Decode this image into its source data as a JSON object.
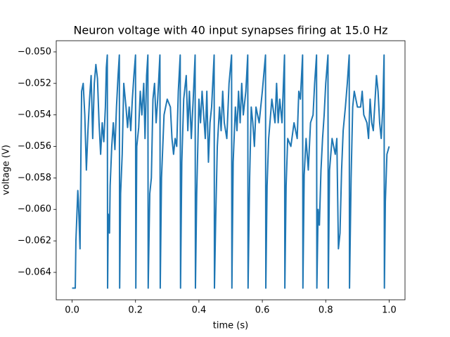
{
  "chart_data": {
    "type": "line",
    "title": "Neuron voltage with 40 input synapses firing at 15.0 Hz",
    "x_label": "time (s)",
    "y_label": "voltage (V)",
    "color": "#1f77b4",
    "xlim": [
      -0.05,
      1.05
    ],
    "xticks": [
      {
        "value": 0,
        "label": "0.0"
      },
      0.2,
      0.4,
      0.6,
      0.8,
      {
        "value": 1,
        "label": "1.0"
      }
    ],
    "ylim": [
      -0.06574,
      -0.04929
    ],
    "yticks": [
      {
        "value": -0.064,
        "label": "−0.064"
      },
      {
        "value": -0.062,
        "label": "−0.062"
      },
      {
        "value": -0.06,
        "label": "−0.060"
      },
      {
        "value": -0.058,
        "label": "−0.058"
      },
      {
        "value": -0.056,
        "label": "−0.056"
      },
      {
        "value": -0.054,
        "label": "−0.054"
      },
      {
        "value": -0.052,
        "label": "−0.052"
      },
      {
        "value": -0.05,
        "label": "−0.050"
      }
    ],
    "x": [
      0,
      0.01,
      0.012,
      0.018,
      0.02,
      0.025,
      0.028,
      0.03,
      0.035,
      0.04,
      0.045,
      0.05,
      0.055,
      0.06,
      0.065,
      0.07,
      0.075,
      0.08,
      0.085,
      0.09,
      0.095,
      0.1,
      0.105,
      0.108,
      0.111,
      0.112,
      0.114,
      0.118,
      0.12,
      0.125,
      0.13,
      0.135,
      0.14,
      0.145,
      0.149,
      0.15,
      0.153,
      0.158,
      0.163,
      0.17,
      0.175,
      0.18,
      0.185,
      0.19,
      0.195,
      0.2,
      0.201,
      0.204,
      0.21,
      0.215,
      0.22,
      0.226,
      0.23,
      0.235,
      0.239,
      0.24,
      0.245,
      0.25,
      0.255,
      0.26,
      0.265,
      0.27,
      0.277,
      0.278,
      0.282,
      0.29,
      0.3,
      0.31,
      0.315,
      0.32,
      0.325,
      0.33,
      0.335,
      0.341,
      0.342,
      0.346,
      0.352,
      0.36,
      0.365,
      0.37,
      0.376,
      0.382,
      0.388,
      0.389,
      0.393,
      0.4,
      0.405,
      0.41,
      0.415,
      0.42,
      0.425,
      0.43,
      0.435,
      0.44,
      0.448,
      0.449,
      0.453,
      0.458,
      0.465,
      0.47,
      0.475,
      0.48,
      0.488,
      0.495,
      0.503,
      0.504,
      0.508,
      0.515,
      0.52,
      0.525,
      0.53,
      0.535,
      0.54,
      0.548,
      0.554,
      0.555,
      0.56,
      0.565,
      0.57,
      0.575,
      0.58,
      0.59,
      0.6,
      0.61,
      0.611,
      0.615,
      0.62,
      0.63,
      0.64,
      0.645,
      0.65,
      0.655,
      0.662,
      0.67,
      0.671,
      0.675,
      0.68,
      0.69,
      0.7,
      0.71,
      0.715,
      0.72,
      0.727,
      0.728,
      0.732,
      0.738,
      0.745,
      0.752,
      0.76,
      0.765,
      0.771,
      0.772,
      0.776,
      0.78,
      0.785,
      0.79,
      0.795,
      0.8,
      0.807,
      0.808,
      0.812,
      0.82,
      0.83,
      0.835,
      0.84,
      0.845,
      0.85,
      0.855,
      0.862,
      0.868,
      0.874,
      0.875,
      0.88,
      0.885,
      0.89,
      0.9,
      0.91,
      0.915,
      0.92,
      0.93,
      0.935,
      0.94,
      0.945,
      0.95,
      0.96,
      0.965,
      0.97,
      0.975,
      0.98,
      0.984,
      0.985,
      0.988,
      0.993,
      1
    ],
    "values": [
      -0.065,
      -0.065,
      -0.062,
      -0.0588,
      -0.0595,
      -0.0625,
      -0.056,
      -0.0525,
      -0.052,
      -0.054,
      -0.0575,
      -0.055,
      -0.053,
      -0.0515,
      -0.0555,
      -0.052,
      -0.0508,
      -0.0517,
      -0.0545,
      -0.0565,
      -0.0545,
      -0.0557,
      -0.0535,
      -0.051,
      -0.0502,
      -0.065,
      -0.0603,
      -0.0615,
      -0.0585,
      -0.056,
      -0.0545,
      -0.0562,
      -0.0535,
      -0.0515,
      -0.0502,
      -0.065,
      -0.059,
      -0.0565,
      -0.052,
      -0.0535,
      -0.0548,
      -0.0535,
      -0.055,
      -0.053,
      -0.0515,
      -0.0502,
      -0.065,
      -0.056,
      -0.0548,
      -0.0525,
      -0.054,
      -0.052,
      -0.0555,
      -0.0515,
      -0.0502,
      -0.065,
      -0.059,
      -0.058,
      -0.053,
      -0.052,
      -0.0545,
      -0.053,
      -0.0502,
      -0.065,
      -0.058,
      -0.054,
      -0.053,
      -0.0535,
      -0.0555,
      -0.0565,
      -0.0555,
      -0.056,
      -0.0525,
      -0.0502,
      -0.065,
      -0.057,
      -0.053,
      -0.0515,
      -0.055,
      -0.0525,
      -0.0555,
      -0.053,
      -0.0502,
      -0.065,
      -0.059,
      -0.053,
      -0.0545,
      -0.0525,
      -0.054,
      -0.0555,
      -0.0525,
      -0.057,
      -0.0545,
      -0.0535,
      -0.0502,
      -0.065,
      -0.0605,
      -0.056,
      -0.0535,
      -0.055,
      -0.0525,
      -0.0545,
      -0.0555,
      -0.052,
      -0.0502,
      -0.065,
      -0.057,
      -0.0535,
      -0.055,
      -0.0525,
      -0.0545,
      -0.052,
      -0.054,
      -0.0525,
      -0.0502,
      -0.065,
      -0.058,
      -0.0535,
      -0.0545,
      -0.056,
      -0.0535,
      -0.0545,
      -0.0525,
      -0.0502,
      -0.065,
      -0.0585,
      -0.0555,
      -0.053,
      -0.0545,
      -0.052,
      -0.0545,
      -0.053,
      -0.0545,
      -0.0502,
      -0.065,
      -0.0585,
      -0.0555,
      -0.056,
      -0.0545,
      -0.0555,
      -0.0525,
      -0.053,
      -0.0502,
      -0.065,
      -0.0578,
      -0.0555,
      -0.0575,
      -0.0545,
      -0.054,
      -0.052,
      -0.0502,
      -0.065,
      -0.06,
      -0.061,
      -0.0575,
      -0.0555,
      -0.054,
      -0.052,
      -0.0502,
      -0.065,
      -0.0575,
      -0.0555,
      -0.0565,
      -0.0555,
      -0.0625,
      -0.0615,
      -0.0575,
      -0.055,
      -0.0535,
      -0.052,
      -0.0502,
      -0.065,
      -0.058,
      -0.0535,
      -0.0525,
      -0.0535,
      -0.0535,
      -0.0525,
      -0.054,
      -0.0545,
      -0.0555,
      -0.053,
      -0.0545,
      -0.055,
      -0.0515,
      -0.0525,
      -0.0545,
      -0.0555,
      -0.0535,
      -0.0502,
      -0.065,
      -0.0595,
      -0.0565,
      -0.056
    ]
  }
}
